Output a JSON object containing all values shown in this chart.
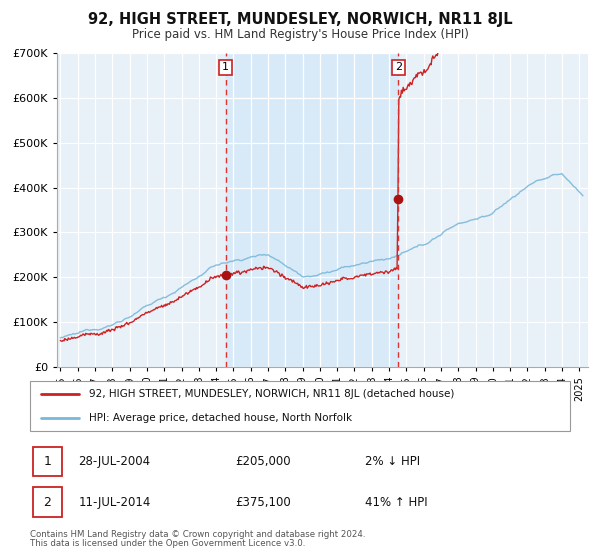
{
  "title": "92, HIGH STREET, MUNDESLEY, NORWICH, NR11 8JL",
  "subtitle": "Price paid vs. HM Land Registry's House Price Index (HPI)",
  "legend_line1": "92, HIGH STREET, MUNDESLEY, NORWICH, NR11 8JL (detached house)",
  "legend_line2": "HPI: Average price, detached house, North Norfolk",
  "transaction1_date": "28-JUL-2004",
  "transaction1_price": "£205,000",
  "transaction1_hpi": "2% ↓ HPI",
  "transaction2_date": "11-JUL-2014",
  "transaction2_price": "£375,100",
  "transaction2_hpi": "41% ↑ HPI",
  "footnote1": "Contains HM Land Registry data © Crown copyright and database right 2024.",
  "footnote2": "This data is licensed under the Open Government Licence v3.0.",
  "sale1_date_num": 2004.55,
  "sale1_price": 205000,
  "sale2_date_num": 2014.53,
  "sale2_price": 375100,
  "hpi_color": "#7ab8d9",
  "price_color": "#cc2222",
  "sale_marker_color": "#aa1111",
  "vline_color": "#dd3333",
  "shade_color": "#d8eaf7",
  "plot_bg_color": "#e8f0f8",
  "ylim_max": 700000,
  "ylim_min": 0,
  "xlabel_years": [
    1995,
    1996,
    1997,
    1998,
    1999,
    2000,
    2001,
    2002,
    2003,
    2004,
    2005,
    2006,
    2007,
    2008,
    2009,
    2010,
    2011,
    2012,
    2013,
    2014,
    2015,
    2016,
    2017,
    2018,
    2019,
    2020,
    2021,
    2022,
    2023,
    2024,
    2025
  ]
}
